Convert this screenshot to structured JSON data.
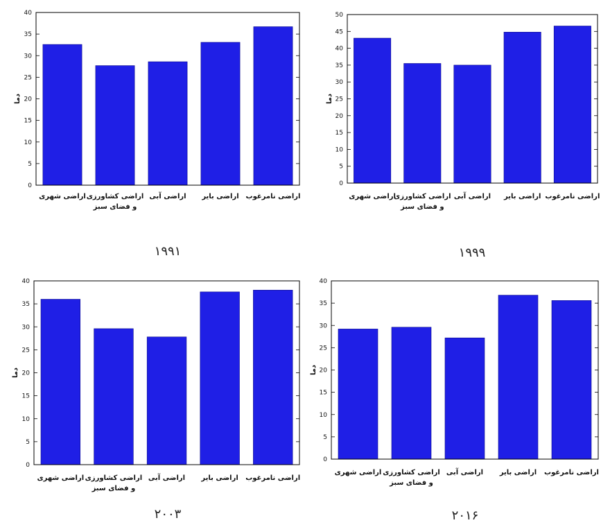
{
  "colors": {
    "bar": "#1f1fe6",
    "bar_light": "#3a3ae8",
    "frame": "#000000"
  },
  "chart_data": [
    {
      "type": "bar",
      "caption": "۱۹۹۱",
      "ylabel": "دما",
      "ylim": [
        0,
        40
      ],
      "yticks": [
        0,
        5,
        10,
        15,
        20,
        25,
        30,
        35,
        40
      ],
      "categories": [
        [
          "اراضی شهری"
        ],
        [
          "اراضی کشاورزی",
          "و فضای سبز"
        ],
        [
          "اراضی آبی"
        ],
        [
          "اراضی بایر"
        ],
        [
          "اراضی نامرغوب"
        ]
      ],
      "values": [
        32.6,
        27.7,
        28.6,
        33.1,
        36.7
      ]
    },
    {
      "type": "bar",
      "caption": "۱۹۹۹",
      "ylabel": "دما",
      "ylim": [
        0,
        50
      ],
      "yticks": [
        0,
        5,
        10,
        15,
        20,
        25,
        30,
        35,
        40,
        45,
        50
      ],
      "categories": [
        [
          "اراضی شهری"
        ],
        [
          "اراضی کشاورزی",
          "و فضای سبز"
        ],
        [
          "اراضی آبی"
        ],
        [
          "اراضی بایر"
        ],
        [
          "اراضی نامرغوب"
        ]
      ],
      "values": [
        43.0,
        35.5,
        35.0,
        44.8,
        46.6
      ]
    },
    {
      "type": "bar",
      "caption": "۲۰۰۳",
      "ylabel": "دما",
      "ylim": [
        0,
        40
      ],
      "yticks": [
        0,
        5,
        10,
        15,
        20,
        25,
        30,
        35,
        40
      ],
      "categories": [
        [
          "اراضی شهری"
        ],
        [
          "اراضی کشاورزی",
          "و فضای سبز"
        ],
        [
          "اراضی آبی"
        ],
        [
          "اراضی بایر"
        ],
        [
          "اراضی نامرغوب"
        ]
      ],
      "values": [
        36.0,
        29.6,
        27.8,
        37.6,
        38.0
      ]
    },
    {
      "type": "bar",
      "caption": "۲۰۱۶",
      "ylabel": "دما",
      "ylim": [
        0,
        40
      ],
      "yticks": [
        0,
        5,
        10,
        15,
        20,
        25,
        30,
        35,
        40
      ],
      "categories": [
        [
          "اراضی شهری"
        ],
        [
          "اراضی کشاورزی",
          "و فضای سبز"
        ],
        [
          "اراضی آبی"
        ],
        [
          "اراضی بایر"
        ],
        [
          "اراضی نامرغوب"
        ]
      ],
      "values": [
        29.2,
        29.6,
        27.2,
        36.8,
        35.6
      ]
    }
  ]
}
